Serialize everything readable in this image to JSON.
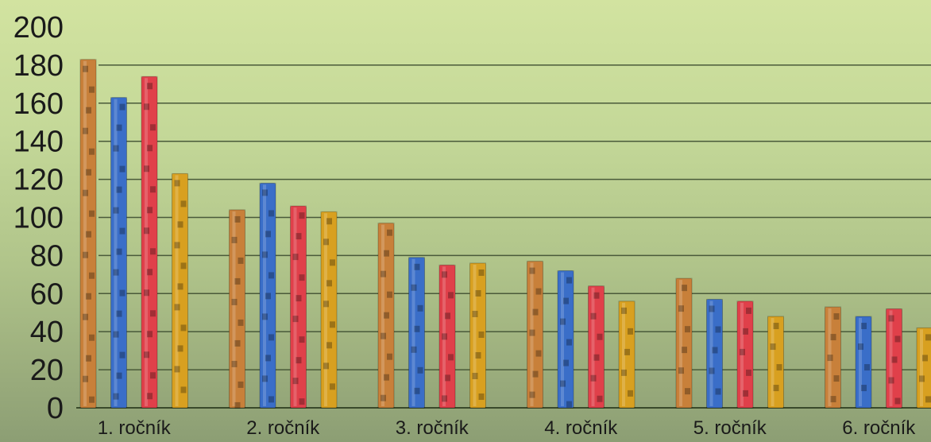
{
  "chart_data": {
    "type": "bar",
    "title": "",
    "xlabel": "",
    "ylabel": "",
    "ylim": [
      0,
      200
    ],
    "yticks": [
      0,
      20,
      40,
      60,
      80,
      100,
      120,
      140,
      160,
      180,
      200
    ],
    "grid": true,
    "legend": "none",
    "categories": [
      "1. ročník",
      "2. ročník",
      "3. ročník",
      "4. ročník",
      "5. ročník",
      "6. ročník"
    ],
    "series": [
      {
        "color": "#c8803a",
        "values": [
          183,
          104,
          97,
          77,
          68,
          53
        ]
      },
      {
        "color": "#3a6ec8",
        "values": [
          163,
          118,
          79,
          72,
          57,
          48
        ]
      },
      {
        "color": "#e0404a",
        "values": [
          174,
          106,
          75,
          64,
          56,
          52
        ]
      },
      {
        "color": "#d8a020",
        "values": [
          123,
          103,
          76,
          56,
          48,
          42
        ]
      }
    ]
  }
}
